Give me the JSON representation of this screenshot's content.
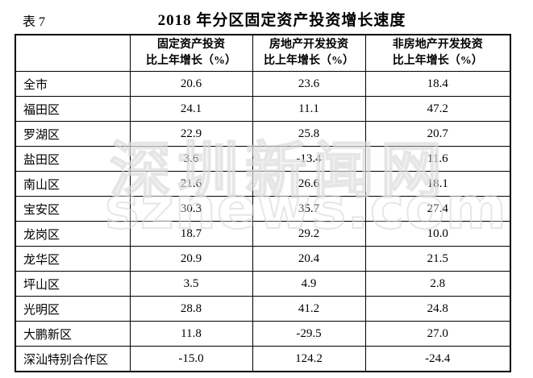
{
  "colors": {
    "background": "#ffffff",
    "text": "#000000",
    "border": "#000000",
    "watermark": "#dcdcdc"
  },
  "watermark": {
    "line1": "深圳新闻网",
    "line2": "sznews.com"
  },
  "chart_data": {
    "type": "table",
    "table_label": "表 7",
    "title": "2018 年分区固定资产投资增长速度",
    "row_header": "",
    "columns": [
      {
        "line1": "固定资产投资",
        "line2": "比上年增长（%）"
      },
      {
        "line1": "房地产开发投资",
        "line2": "比上年增长（%）"
      },
      {
        "line1": "非房地产开发投资",
        "line2": "比上年增长（%）"
      }
    ],
    "rows": [
      {
        "label": "全市",
        "values": [
          "20.6",
          "23.6",
          "18.4"
        ]
      },
      {
        "label": "福田区",
        "values": [
          "24.1",
          "11.1",
          "47.2"
        ]
      },
      {
        "label": "罗湖区",
        "values": [
          "22.9",
          "25.8",
          "20.7"
        ]
      },
      {
        "label": "盐田区",
        "values": [
          "3.6",
          "-13.4",
          "11.6"
        ]
      },
      {
        "label": "南山区",
        "values": [
          "21.6",
          "26.6",
          "18.1"
        ]
      },
      {
        "label": "宝安区",
        "values": [
          "30.3",
          "35.7",
          "27.4"
        ]
      },
      {
        "label": "龙岗区",
        "values": [
          "18.7",
          "29.2",
          "10.0"
        ]
      },
      {
        "label": "龙华区",
        "values": [
          "20.9",
          "20.4",
          "21.5"
        ]
      },
      {
        "label": "坪山区",
        "values": [
          "3.5",
          "4.9",
          "2.8"
        ]
      },
      {
        "label": "光明区",
        "values": [
          "28.8",
          "41.2",
          "24.8"
        ]
      },
      {
        "label": "大鹏新区",
        "values": [
          "11.8",
          "-29.5",
          "27.0"
        ]
      },
      {
        "label": "深汕特别合作区",
        "values": [
          "-15.0",
          "124.2",
          "-24.4"
        ]
      }
    ]
  }
}
